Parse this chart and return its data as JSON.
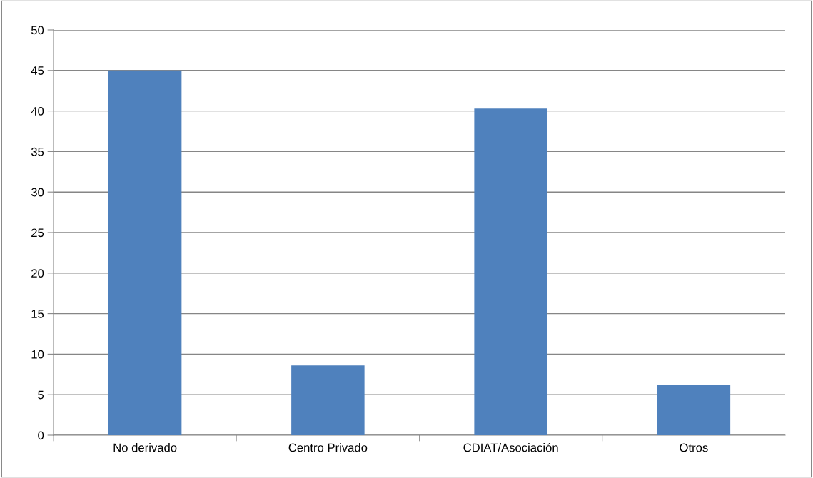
{
  "chart_data": {
    "type": "bar",
    "categories": [
      "No derivado",
      "Centro Privado",
      "CDIAT/Asociación",
      "Otros"
    ],
    "values": [
      45,
      8.6,
      40.3,
      6.2
    ],
    "color": "#4f81bd",
    "ylim": [
      0,
      50
    ],
    "yticks": [
      0,
      5,
      10,
      15,
      20,
      25,
      30,
      35,
      40,
      45,
      50
    ],
    "grid": "y",
    "legend": false
  }
}
